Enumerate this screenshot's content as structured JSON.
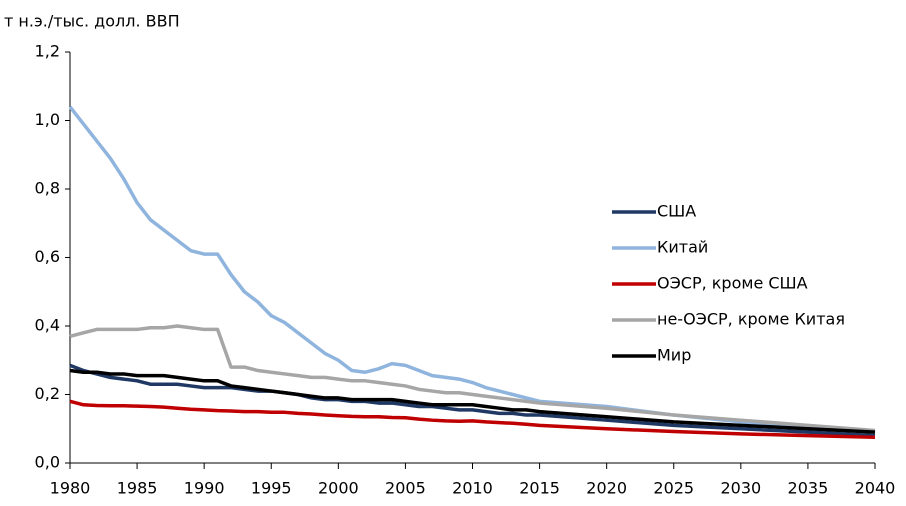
{
  "chart_data": {
    "type": "line",
    "y_label": "т н.э./тыс. долл. ВВП",
    "x": [
      1980,
      1981,
      1982,
      1983,
      1984,
      1985,
      1986,
      1987,
      1988,
      1989,
      1990,
      1991,
      1992,
      1993,
      1994,
      1995,
      1996,
      1997,
      1998,
      1999,
      2000,
      2001,
      2002,
      2003,
      2004,
      2005,
      2006,
      2007,
      2008,
      2009,
      2010,
      2011,
      2012,
      2013,
      2014,
      2015,
      2020,
      2025,
      2030,
      2035,
      2040
    ],
    "series": [
      {
        "name": "США",
        "color": "#1f3864",
        "values": [
          0.285,
          0.27,
          0.26,
          0.25,
          0.245,
          0.24,
          0.23,
          0.23,
          0.23,
          0.225,
          0.22,
          0.22,
          0.22,
          0.215,
          0.21,
          0.21,
          0.205,
          0.2,
          0.19,
          0.185,
          0.185,
          0.18,
          0.18,
          0.175,
          0.175,
          0.17,
          0.165,
          0.165,
          0.16,
          0.155,
          0.155,
          0.15,
          0.145,
          0.145,
          0.14,
          0.14,
          0.125,
          0.11,
          0.1,
          0.09,
          0.08
        ]
      },
      {
        "name": "Китай",
        "color": "#8fb4dd",
        "values": [
          1.04,
          0.99,
          0.94,
          0.89,
          0.83,
          0.76,
          0.71,
          0.68,
          0.65,
          0.62,
          0.61,
          0.61,
          0.55,
          0.5,
          0.47,
          0.43,
          0.41,
          0.38,
          0.35,
          0.32,
          0.3,
          0.27,
          0.265,
          0.275,
          0.29,
          0.285,
          0.27,
          0.255,
          0.25,
          0.245,
          0.235,
          0.22,
          0.21,
          0.2,
          0.19,
          0.18,
          0.165,
          0.14,
          0.12,
          0.105,
          0.09
        ]
      },
      {
        "name": "ОЭСР, кроме США",
        "color": "#c00000",
        "values": [
          0.18,
          0.17,
          0.168,
          0.167,
          0.167,
          0.166,
          0.165,
          0.163,
          0.16,
          0.157,
          0.155,
          0.153,
          0.152,
          0.15,
          0.15,
          0.148,
          0.148,
          0.145,
          0.143,
          0.14,
          0.138,
          0.136,
          0.135,
          0.135,
          0.133,
          0.132,
          0.128,
          0.125,
          0.123,
          0.122,
          0.123,
          0.12,
          0.118,
          0.116,
          0.113,
          0.11,
          0.1,
          0.092,
          0.085,
          0.08,
          0.075
        ]
      },
      {
        "name": "не-ОЭСР, кроме Китая",
        "color": "#a6a6a6",
        "values": [
          0.37,
          0.38,
          0.39,
          0.39,
          0.39,
          0.39,
          0.395,
          0.395,
          0.4,
          0.395,
          0.39,
          0.39,
          0.28,
          0.28,
          0.27,
          0.265,
          0.26,
          0.255,
          0.25,
          0.25,
          0.245,
          0.24,
          0.24,
          0.235,
          0.23,
          0.225,
          0.215,
          0.21,
          0.205,
          0.205,
          0.2,
          0.195,
          0.19,
          0.185,
          0.18,
          0.175,
          0.16,
          0.14,
          0.125,
          0.11,
          0.095
        ]
      },
      {
        "name": "Мир",
        "color": "#000000",
        "values": [
          0.27,
          0.265,
          0.265,
          0.26,
          0.26,
          0.255,
          0.255,
          0.255,
          0.25,
          0.245,
          0.24,
          0.24,
          0.225,
          0.22,
          0.215,
          0.21,
          0.205,
          0.2,
          0.195,
          0.19,
          0.19,
          0.185,
          0.185,
          0.185,
          0.185,
          0.18,
          0.175,
          0.17,
          0.17,
          0.17,
          0.17,
          0.165,
          0.16,
          0.155,
          0.155,
          0.15,
          0.135,
          0.12,
          0.11,
          0.1,
          0.09
        ]
      }
    ],
    "xlim": [
      1980,
      2040
    ],
    "xticks": [
      1980,
      1985,
      1990,
      1995,
      2000,
      2005,
      2010,
      2015,
      2020,
      2025,
      2030,
      2035,
      2040
    ],
    "ylim": [
      0,
      1.2
    ],
    "yticks": [
      {
        "value": 0,
        "label": "0,0"
      },
      {
        "value": 0.2,
        "label": "0,2"
      },
      {
        "value": 0.4,
        "label": "0,4"
      },
      {
        "value": 0.6,
        "label": "0,6"
      },
      {
        "value": 0.8,
        "label": "0,8"
      },
      {
        "value": 1.0,
        "label": "1,0"
      },
      {
        "value": 1.2,
        "label": "1,2"
      }
    ],
    "grid": false,
    "legend": "right"
  }
}
